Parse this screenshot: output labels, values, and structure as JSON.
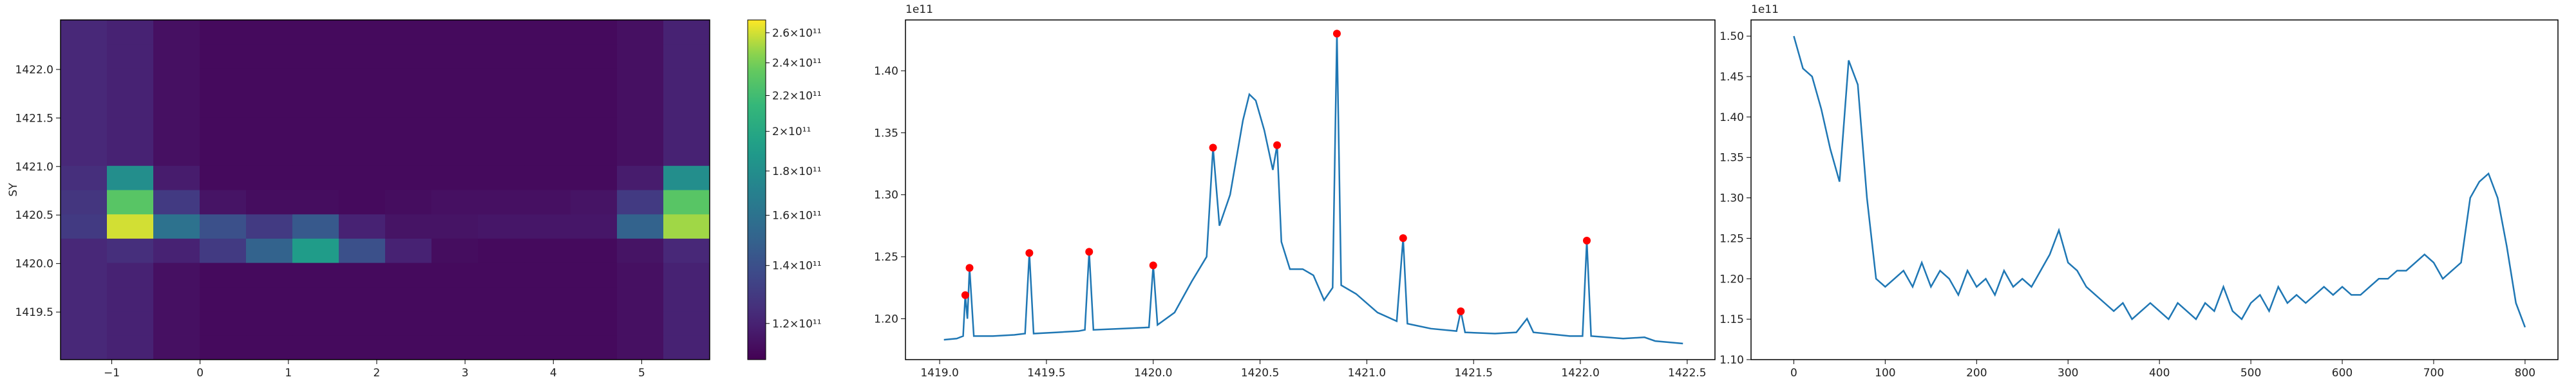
{
  "chart_data": [
    {
      "type": "heatmap",
      "ylabel": "SY",
      "colormap": "viridis",
      "xbins": [
        -1.58,
        -1.055,
        -0.53,
        -0.005,
        0.52,
        1.045,
        1.57,
        2.095,
        2.62,
        3.145,
        3.67,
        4.195,
        4.72,
        5.245,
        5.77
      ],
      "ybins": [
        1419.01,
        1419.26,
        1419.51,
        1419.76,
        1420.01,
        1420.26,
        1420.51,
        1420.76,
        1421.01,
        1421.26,
        1421.51,
        1421.76,
        1422.01,
        1422.26,
        1422.51
      ],
      "z": [
        [
          122000000000.0,
          120000000000.0,
          114000000000.0,
          112000000000.0,
          112000000000.0,
          112000000000.0,
          112000000000.0,
          112000000000.0,
          112000000000.0,
          112000000000.0,
          112000000000.0,
          112000000000.0,
          114000000000.0,
          120000000000.0
        ],
        [
          122000000000.0,
          120000000000.0,
          114000000000.0,
          112000000000.0,
          112000000000.0,
          112000000000.0,
          112000000000.0,
          112000000000.0,
          112000000000.0,
          112000000000.0,
          112000000000.0,
          112000000000.0,
          114000000000.0,
          120000000000.0
        ],
        [
          122000000000.0,
          120000000000.0,
          114000000000.0,
          112000000000.0,
          112000000000.0,
          112000000000.0,
          112000000000.0,
          112000000000.0,
          112000000000.0,
          112000000000.0,
          112000000000.0,
          112000000000.0,
          114000000000.0,
          120000000000.0
        ],
        [
          122000000000.0,
          120000000000.0,
          114000000000.0,
          112000000000.0,
          112000000000.0,
          112000000000.0,
          112000000000.0,
          112000000000.0,
          112000000000.0,
          112000000000.0,
          112000000000.0,
          112000000000.0,
          114000000000.0,
          120000000000.0
        ],
        [
          122000000000.0,
          125000000000.0,
          120000000000.0,
          130000000000.0,
          150000000000.0,
          190000000000.0,
          140000000000.0,
          120000000000.0,
          113000000000.0,
          112000000000.0,
          112000000000.0,
          112000000000.0,
          115000000000.0,
          122000000000.0
        ],
        [
          130000000000.0,
          260000000000.0,
          160000000000.0,
          140000000000.0,
          130000000000.0,
          145000000000.0,
          120000000000.0,
          115000000000.0,
          115000000000.0,
          116000000000.0,
          116000000000.0,
          116000000000.0,
          150000000000.0,
          250000000000.0
        ],
        [
          128000000000.0,
          230000000000.0,
          130000000000.0,
          115000000000.0,
          113000000000.0,
          113000000000.0,
          112000000000.0,
          113000000000.0,
          114000000000.0,
          114000000000.0,
          114000000000.0,
          115000000000.0,
          130000000000.0,
          230000000000.0
        ],
        [
          125000000000.0,
          180000000000.0,
          118000000000.0,
          112000000000.0,
          112000000000.0,
          112000000000.0,
          112000000000.0,
          112000000000.0,
          112000000000.0,
          112000000000.0,
          112000000000.0,
          112000000000.0,
          118000000000.0,
          180000000000.0
        ],
        [
          122000000000.0,
          120000000000.0,
          114000000000.0,
          112000000000.0,
          112000000000.0,
          112000000000.0,
          112000000000.0,
          112000000000.0,
          112000000000.0,
          112000000000.0,
          112000000000.0,
          112000000000.0,
          114000000000.0,
          120000000000.0
        ],
        [
          122000000000.0,
          120000000000.0,
          114000000000.0,
          112000000000.0,
          112000000000.0,
          112000000000.0,
          112000000000.0,
          112000000000.0,
          112000000000.0,
          112000000000.0,
          112000000000.0,
          112000000000.0,
          114000000000.0,
          120000000000.0
        ],
        [
          122000000000.0,
          120000000000.0,
          114000000000.0,
          112000000000.0,
          112000000000.0,
          112000000000.0,
          112000000000.0,
          112000000000.0,
          112000000000.0,
          112000000000.0,
          112000000000.0,
          112000000000.0,
          114000000000.0,
          120000000000.0
        ],
        [
          122000000000.0,
          120000000000.0,
          114000000000.0,
          112000000000.0,
          112000000000.0,
          112000000000.0,
          112000000000.0,
          112000000000.0,
          112000000000.0,
          112000000000.0,
          112000000000.0,
          112000000000.0,
          114000000000.0,
          120000000000.0
        ],
        [
          122000000000.0,
          120000000000.0,
          114000000000.0,
          112000000000.0,
          112000000000.0,
          112000000000.0,
          112000000000.0,
          112000000000.0,
          112000000000.0,
          112000000000.0,
          112000000000.0,
          112000000000.0,
          114000000000.0,
          120000000000.0
        ],
        [
          122000000000.0,
          120000000000.0,
          114000000000.0,
          112000000000.0,
          112000000000.0,
          112000000000.0,
          112000000000.0,
          112000000000.0,
          112000000000.0,
          112000000000.0,
          112000000000.0,
          112000000000.0,
          114000000000.0,
          120000000000.0
        ]
      ],
      "xlim": [
        -1.58,
        5.77
      ],
      "ylim": [
        1419.01,
        1422.51
      ],
      "xticks": [
        {
          "value": -1,
          "label": "−1"
        },
        0,
        1,
        2,
        3,
        4,
        5
      ],
      "yticks": [
        1419.5,
        {
          "value": 1420,
          "label": "1420.0"
        },
        1420.5,
        {
          "value": 1421,
          "label": "1421.0"
        },
        1421.5,
        {
          "value": 1422,
          "label": "1422.0"
        }
      ],
      "colorbar": {
        "scale": "log",
        "lim": [
          109000000000.0,
          269000000000.0
        ],
        "ticks": [
          {
            "value": 120000000000.0,
            "label": "1.2×10¹¹"
          },
          {
            "value": 140000000000.0,
            "label": "1.4×10¹¹"
          },
          {
            "value": 160000000000.0,
            "label": "1.6×10¹¹"
          },
          {
            "value": 180000000000.0,
            "label": "1.8×10¹¹"
          },
          {
            "value": 200000000000.0,
            "label": "2×10¹¹"
          },
          {
            "value": 220000000000.0,
            "label": "2.2×10¹¹"
          },
          {
            "value": 240000000000.0,
            "label": "2.4×10¹¹"
          },
          {
            "value": 260000000000.0,
            "label": "2.6×10¹¹"
          }
        ]
      }
    },
    {
      "type": "line",
      "color": "#1f77b4",
      "offset_label": "1e11",
      "x": [
        1419.02,
        1419.08,
        1419.11,
        1419.12,
        1419.13,
        1419.14,
        1419.16,
        1419.25,
        1419.35,
        1419.4,
        1419.42,
        1419.44,
        1419.55,
        1419.65,
        1419.68,
        1419.7,
        1419.72,
        1419.85,
        1419.98,
        1420.0,
        1420.02,
        1420.1,
        1420.18,
        1420.25,
        1420.28,
        1420.31,
        1420.36,
        1420.42,
        1420.45,
        1420.48,
        1420.52,
        1420.56,
        1420.58,
        1420.6,
        1420.64,
        1420.7,
        1420.75,
        1420.8,
        1420.84,
        1420.86,
        1420.88,
        1420.95,
        1421.05,
        1421.14,
        1421.17,
        1421.19,
        1421.3,
        1421.42,
        1421.44,
        1421.46,
        1421.6,
        1421.7,
        1421.75,
        1421.78,
        1421.95,
        1422.01,
        1422.03,
        1422.05,
        1422.2,
        1422.3,
        1422.35,
        1422.48
      ],
      "values": [
        1.183,
        1.184,
        1.186,
        1.219,
        1.2,
        1.241,
        1.186,
        1.186,
        1.187,
        1.188,
        1.253,
        1.188,
        1.189,
        1.19,
        1.191,
        1.254,
        1.191,
        1.192,
        1.193,
        1.243,
        1.195,
        1.205,
        1.23,
        1.25,
        1.338,
        1.275,
        1.3,
        1.36,
        1.381,
        1.376,
        1.352,
        1.32,
        1.34,
        1.262,
        1.24,
        1.24,
        1.235,
        1.215,
        1.225,
        1.43,
        1.227,
        1.22,
        1.205,
        1.198,
        1.265,
        1.196,
        1.192,
        1.19,
        1.206,
        1.189,
        1.188,
        1.189,
        1.2,
        1.189,
        1.186,
        1.186,
        1.263,
        1.186,
        1.184,
        1.185,
        1.182,
        1.18
      ],
      "peaks": {
        "color": "red",
        "x": [
          1419.12,
          1419.14,
          1419.42,
          1419.7,
          1420.0,
          1420.28,
          1420.58,
          1420.86,
          1421.17,
          1421.44,
          1422.03
        ],
        "values": [
          1.219,
          1.241,
          1.253,
          1.254,
          1.243,
          1.338,
          1.34,
          1.43,
          1.265,
          1.206,
          1.263
        ]
      },
      "xlim": [
        1418.84,
        1422.63
      ],
      "ylim": [
        1.167,
        1.441
      ],
      "xticks": [
        {
          "value": 1419,
          "label": "1419.0"
        },
        1419.5,
        {
          "value": 1420,
          "label": "1420.0"
        },
        1420.5,
        {
          "value": 1421,
          "label": "1421.0"
        },
        1421.5,
        {
          "value": 1422,
          "label": "1422.0"
        },
        1422.5
      ],
      "yticks": [
        {
          "value": 1.2,
          "label": "1.20"
        },
        1.25,
        {
          "value": 1.3,
          "label": "1.30"
        },
        1.35,
        {
          "value": 1.4,
          "label": "1.40"
        }
      ]
    },
    {
      "type": "line",
      "color": "#1f77b4",
      "offset_label": "1e11",
      "x": [
        0,
        10,
        20,
        30,
        40,
        50,
        60,
        70,
        80,
        90,
        100,
        110,
        120,
        130,
        140,
        150,
        160,
        170,
        180,
        190,
        200,
        210,
        220,
        230,
        240,
        250,
        260,
        270,
        280,
        290,
        300,
        310,
        320,
        330,
        340,
        350,
        360,
        370,
        380,
        390,
        400,
        410,
        420,
        430,
        440,
        450,
        460,
        470,
        480,
        490,
        500,
        510,
        520,
        530,
        540,
        550,
        560,
        570,
        580,
        590,
        600,
        610,
        620,
        630,
        640,
        650,
        660,
        670,
        680,
        690,
        700,
        710,
        720,
        730,
        740,
        750,
        760,
        770,
        780,
        790,
        800
      ],
      "values": [
        1.5,
        1.46,
        1.45,
        1.41,
        1.36,
        1.32,
        1.47,
        1.44,
        1.3,
        1.2,
        1.19,
        1.2,
        1.21,
        1.19,
        1.22,
        1.19,
        1.21,
        1.2,
        1.18,
        1.21,
        1.19,
        1.2,
        1.18,
        1.21,
        1.19,
        1.2,
        1.19,
        1.21,
        1.23,
        1.26,
        1.22,
        1.21,
        1.19,
        1.18,
        1.17,
        1.16,
        1.17,
        1.15,
        1.16,
        1.17,
        1.16,
        1.15,
        1.17,
        1.16,
        1.15,
        1.17,
        1.16,
        1.19,
        1.16,
        1.15,
        1.17,
        1.18,
        1.16,
        1.19,
        1.17,
        1.18,
        1.17,
        1.18,
        1.19,
        1.18,
        1.19,
        1.18,
        1.18,
        1.19,
        1.2,
        1.2,
        1.21,
        1.21,
        1.22,
        1.23,
        1.22,
        1.2,
        1.21,
        1.22,
        1.3,
        1.32,
        1.33,
        1.3,
        1.24,
        1.17,
        1.14
      ],
      "xlim": [
        -46.8,
        836
      ],
      "ylim": [
        1.1,
        1.52
      ],
      "xticks": [
        0,
        100,
        200,
        300,
        400,
        500,
        600,
        700,
        800
      ],
      "yticks": [
        {
          "value": 1.1,
          "label": "1.10"
        },
        1.15,
        {
          "value": 1.2,
          "label": "1.20"
        },
        1.25,
        {
          "value": 1.3,
          "label": "1.30"
        },
        1.35,
        {
          "value": 1.4,
          "label": "1.40"
        },
        1.45,
        {
          "value": 1.5,
          "label": "1.50"
        }
      ]
    }
  ]
}
